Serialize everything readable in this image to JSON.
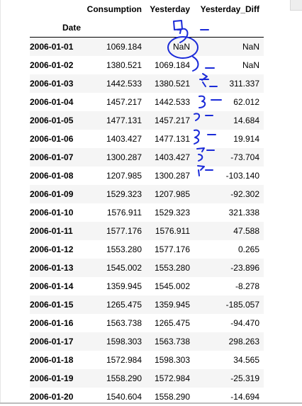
{
  "table": {
    "columns": [
      "Consumption",
      "Yesterday",
      "Yesterday_Diff"
    ],
    "index_name": "Date",
    "rows": [
      {
        "date": "2006-01-01",
        "consumption": "1069.184",
        "yesterday": "NaN",
        "diff": "NaN"
      },
      {
        "date": "2006-01-02",
        "consumption": "1380.521",
        "yesterday": "1069.184",
        "diff": "NaN"
      },
      {
        "date": "2006-01-03",
        "consumption": "1442.533",
        "yesterday": "1380.521",
        "diff": "311.337"
      },
      {
        "date": "2006-01-04",
        "consumption": "1457.217",
        "yesterday": "1442.533",
        "diff": "62.012"
      },
      {
        "date": "2006-01-05",
        "consumption": "1477.131",
        "yesterday": "1457.217",
        "diff": "14.684"
      },
      {
        "date": "2006-01-06",
        "consumption": "1403.427",
        "yesterday": "1477.131",
        "diff": "19.914"
      },
      {
        "date": "2006-01-07",
        "consumption": "1300.287",
        "yesterday": "1403.427",
        "diff": "-73.704"
      },
      {
        "date": "2006-01-08",
        "consumption": "1207.985",
        "yesterday": "1300.287",
        "diff": "-103.140"
      },
      {
        "date": "2006-01-09",
        "consumption": "1529.323",
        "yesterday": "1207.985",
        "diff": "-92.302"
      },
      {
        "date": "2006-01-10",
        "consumption": "1576.911",
        "yesterday": "1529.323",
        "diff": "321.338"
      },
      {
        "date": "2006-01-11",
        "consumption": "1577.176",
        "yesterday": "1576.911",
        "diff": "47.588"
      },
      {
        "date": "2006-01-12",
        "consumption": "1553.280",
        "yesterday": "1577.176",
        "diff": "0.265"
      },
      {
        "date": "2006-01-13",
        "consumption": "1545.002",
        "yesterday": "1553.280",
        "diff": "-23.896"
      },
      {
        "date": "2006-01-14",
        "consumption": "1359.945",
        "yesterday": "1545.002",
        "diff": "-8.278"
      },
      {
        "date": "2006-01-15",
        "consumption": "1265.475",
        "yesterday": "1359.945",
        "diff": "-185.057"
      },
      {
        "date": "2006-01-16",
        "consumption": "1563.738",
        "yesterday": "1265.475",
        "diff": "-94.470"
      },
      {
        "date": "2006-01-17",
        "consumption": "1598.303",
        "yesterday": "1563.738",
        "diff": "298.263"
      },
      {
        "date": "2006-01-18",
        "consumption": "1572.984",
        "yesterday": "1598.303",
        "diff": "34.565"
      },
      {
        "date": "2006-01-19",
        "consumption": "1558.290",
        "yesterday": "1572.984",
        "diff": "-25.319"
      },
      {
        "date": "2006-01-20",
        "consumption": "1540.604",
        "yesterday": "1558.290",
        "diff": "-14.694"
      }
    ]
  },
  "annotation": {
    "ink_color": "#1a2ad8"
  }
}
